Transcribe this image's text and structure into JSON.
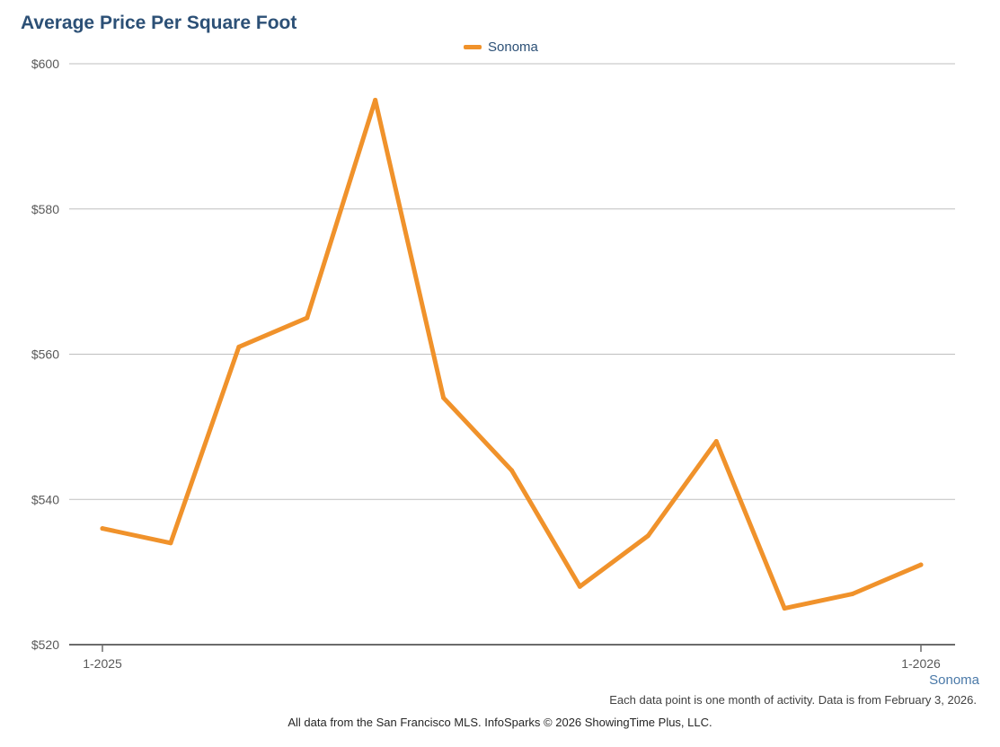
{
  "chart_data": {
    "type": "line",
    "title": "Average Price Per Square Foot",
    "x": [
      "1-2025",
      "2-2025",
      "3-2025",
      "4-2025",
      "5-2025",
      "6-2025",
      "7-2025",
      "8-2025",
      "9-2025",
      "10-2025",
      "11-2025",
      "12-2025",
      "1-2026"
    ],
    "x_tick_labels": [
      "1-2025",
      "1-2026"
    ],
    "series": [
      {
        "name": "Sonoma",
        "color": "#f0922b",
        "values": [
          536,
          534,
          561,
          565,
          595,
          554,
          544,
          528,
          535,
          548,
          525,
          527,
          531
        ]
      }
    ],
    "ylim": [
      520,
      600
    ],
    "y_ticks": [
      520,
      540,
      560,
      580,
      600
    ],
    "y_tick_labels": [
      "$520",
      "$540",
      "$560",
      "$580",
      "$600"
    ],
    "grid": true,
    "legend": "top-center",
    "xlabel": "",
    "ylabel": ""
  },
  "region_label": "Sonoma",
  "footnote": "Each data point is one month of activity. Data is from February 3, 2026.",
  "source": "All data from the San Francisco MLS. InfoSparks © 2026 ShowingTime Plus, LLC.",
  "colors": {
    "title": "#2c5076",
    "series": "#f0922b",
    "grid": "#bfbfbf",
    "axis": "#595959",
    "region_label": "#4a79a8"
  }
}
